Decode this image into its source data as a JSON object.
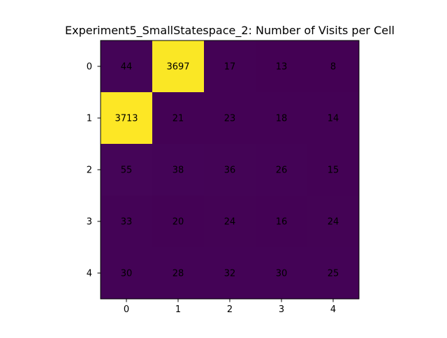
{
  "chart_data": {
    "type": "heatmap",
    "title": "Experiment5_SmallStatespace_2: Number of Visits per Cell",
    "xlabel": "",
    "ylabel": "",
    "x_ticks": [
      "0",
      "1",
      "2",
      "3",
      "4"
    ],
    "y_ticks": [
      "0",
      "1",
      "2",
      "3",
      "4"
    ],
    "values": [
      [
        44,
        3697,
        17,
        13,
        8
      ],
      [
        3713,
        21,
        23,
        18,
        14
      ],
      [
        55,
        38,
        36,
        26,
        15
      ],
      [
        33,
        20,
        24,
        16,
        24
      ],
      [
        30,
        28,
        32,
        30,
        25
      ]
    ],
    "colormap": "viridis",
    "color_low": "#440154",
    "color_high": "#fde725",
    "annotation_color": "#000000",
    "grid": false,
    "legend": "none"
  }
}
